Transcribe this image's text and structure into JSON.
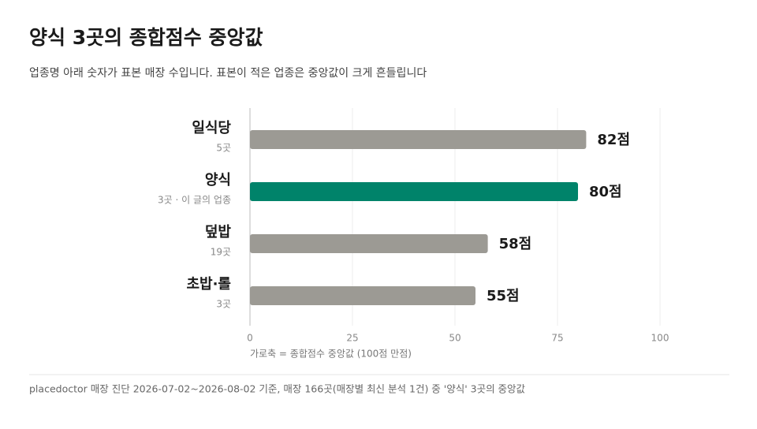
{
  "chart_data": {
    "type": "bar",
    "orientation": "horizontal",
    "title": "양식 3곳의 종합점수 중앙값",
    "subtitle": "업종명 아래 숫자가 표본 매장 수입니다. 표본이 적은 업종은 중앙값이 크게 흔들립니다",
    "categories": [
      "일식당",
      "양식",
      "덮밥",
      "초밥·롤"
    ],
    "category_notes": [
      "5곳",
      "3곳 · 이 글의 업종",
      "19곳",
      "3곳"
    ],
    "values": [
      82,
      80,
      58,
      55
    ],
    "value_labels": [
      "82점",
      "80점",
      "58점",
      "55점"
    ],
    "colors": [
      "#9c9a94",
      "#00836a",
      "#9c9a94",
      "#9c9a94"
    ],
    "xlim": [
      0,
      100
    ],
    "xticks": [
      0,
      25,
      50,
      75,
      100
    ],
    "grid": true,
    "xlabel": "가로축 = 종합점수 중앙값 (100점 만점)",
    "footer": "placedoctor 매장 진단 2026-07-02~2026-08-02 기준, 매장 166곳(매장별 최신 분석 1건) 중 '양식' 3곳의 중앙값"
  }
}
